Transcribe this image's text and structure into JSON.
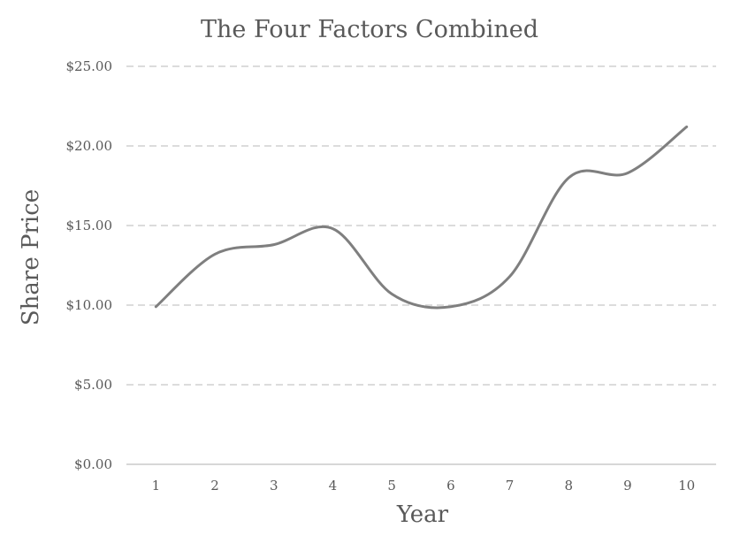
{
  "chart_data": {
    "type": "line",
    "title": "The Four Factors Combined",
    "xlabel": "Year",
    "ylabel": "Share Price",
    "categories": [
      "1",
      "2",
      "3",
      "4",
      "5",
      "6",
      "7",
      "8",
      "9",
      "10"
    ],
    "series": [
      {
        "values": [
          9.9,
          13.2,
          13.8,
          14.8,
          10.7,
          9.9,
          11.8,
          18.0,
          18.3,
          21.2
        ],
        "color": "#7f7f7f"
      }
    ],
    "ylim": [
      0,
      25
    ],
    "yticks": [
      0,
      5,
      10,
      15,
      20,
      25
    ],
    "ytick_labels": [
      "$0.00",
      "$5.00",
      "$10.00",
      "$15.00",
      "$20.00",
      "$25.00"
    ],
    "grid": true,
    "grid_style": "dashed",
    "legend": "none",
    "smooth": true
  }
}
